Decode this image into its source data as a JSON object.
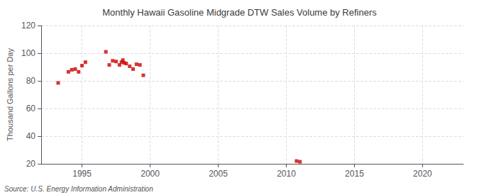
{
  "chart_data": {
    "type": "scatter",
    "title": "Monthly Hawaii Gasoline Midgrade DTW Sales Volume by Refiners",
    "ylabel": "Thousand Gallons per Day",
    "source": "Source: U.S. Energy Information Administration",
    "x": [
      1993.25,
      1994.0,
      1994.25,
      1994.5,
      1994.75,
      1995.0,
      1995.25,
      1996.75,
      1997.0,
      1997.25,
      1997.5,
      1997.75,
      1997.9,
      1998.0,
      1998.1,
      1998.25,
      1998.5,
      1998.75,
      1999.0,
      1999.25,
      1999.5,
      2010.75,
      2011.0
    ],
    "values": [
      78.5,
      86.5,
      88.0,
      88.5,
      86.5,
      91.0,
      93.5,
      101.0,
      91.5,
      94.5,
      94.0,
      91.5,
      93.5,
      95.0,
      93.0,
      92.5,
      90.5,
      88.5,
      92.0,
      91.5,
      84.0,
      22.0,
      21.5
    ],
    "color": "#cc0000",
    "marker": "square",
    "xlim": [
      1992,
      2023
    ],
    "xticks": [
      1995,
      2000,
      2005,
      2010,
      2015,
      2020
    ],
    "ylim": [
      20,
      120
    ],
    "yticks": [
      20,
      40,
      60,
      80,
      100,
      120
    ],
    "grid": true
  }
}
